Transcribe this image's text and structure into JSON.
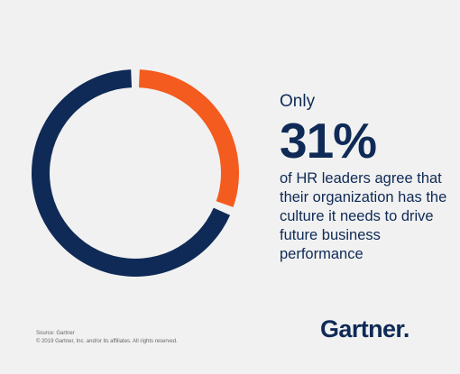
{
  "chart_data": {
    "type": "pie",
    "values": [
      31,
      69
    ],
    "colors": [
      "#f45b1e",
      "#0f2a56"
    ]
  },
  "headline": {
    "prefix": "Only",
    "stat": "31%",
    "description": "of HR leaders agree that their organization has the culture it needs to drive future business performance"
  },
  "footer": {
    "source": "Source: Gartner",
    "copyright": "© 2019 Gartner, Inc. and/or its affiliates. All rights reserved."
  },
  "branding": {
    "logo_text": "Gartner."
  }
}
